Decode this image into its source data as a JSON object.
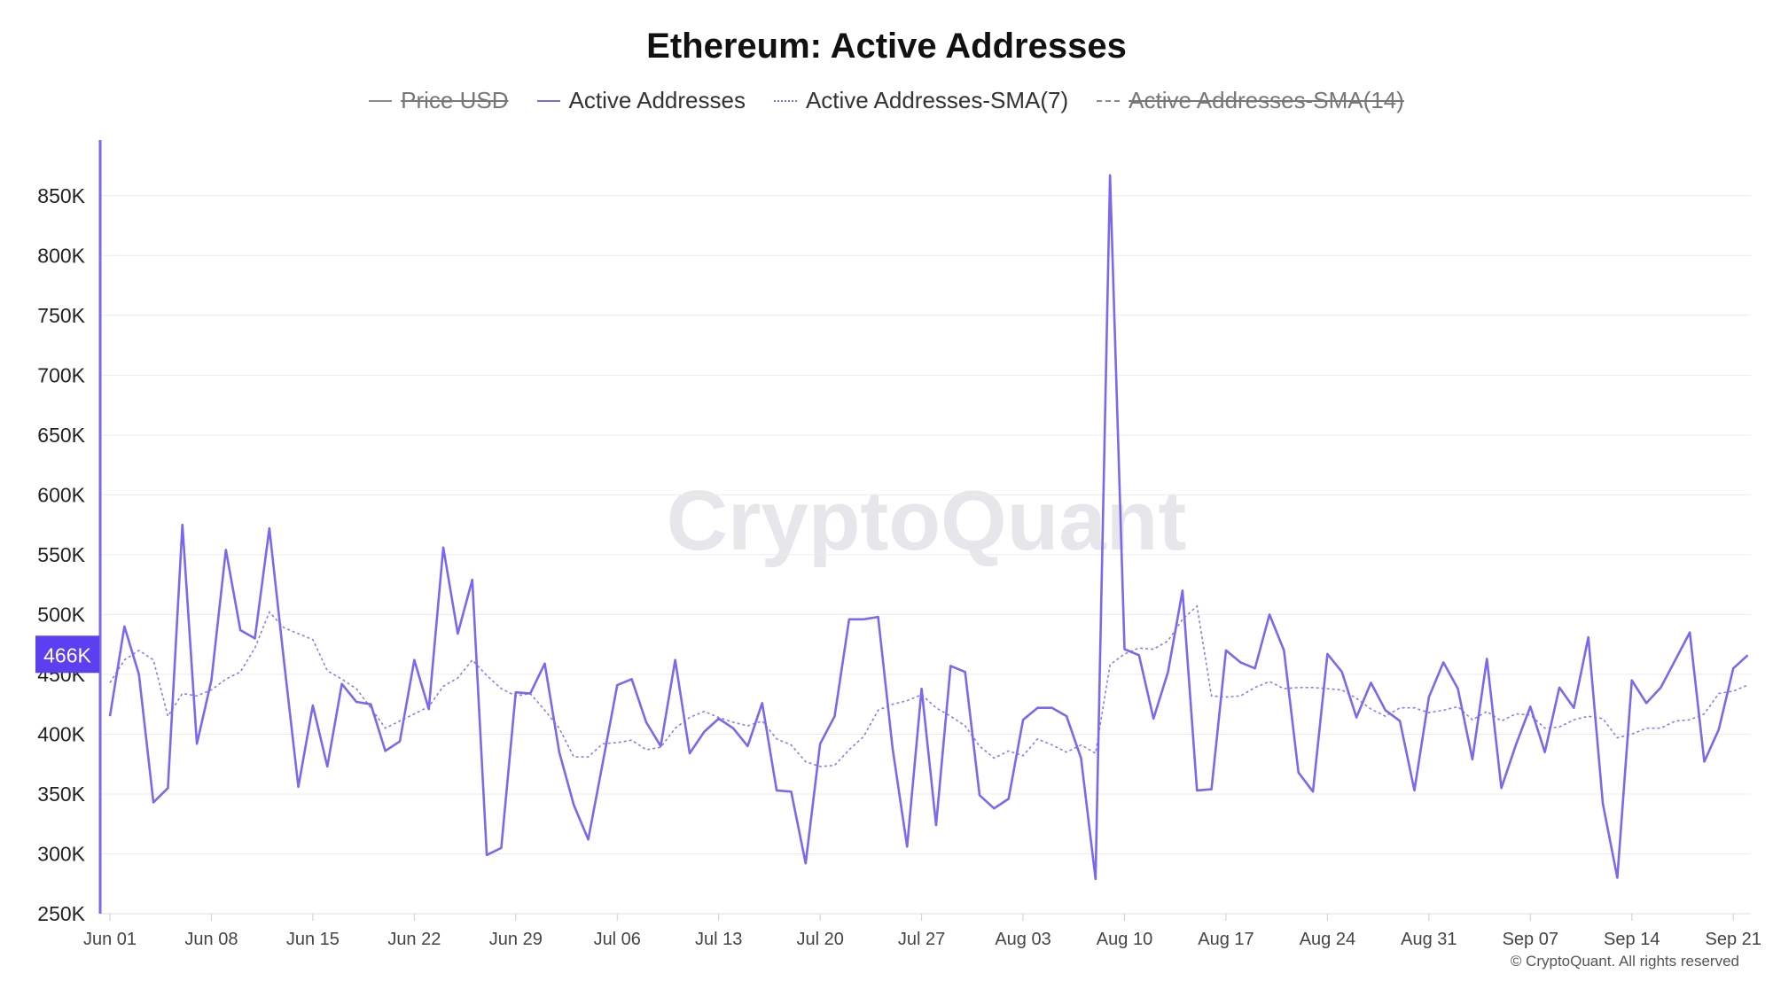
{
  "title": "Ethereum: Active Addresses",
  "legend": [
    {
      "label": "Price USD",
      "style": "solid",
      "hidden": true
    },
    {
      "label": "Active Addresses",
      "style": "solid",
      "hidden": false
    },
    {
      "label": "Active Addresses-SMA(7)",
      "style": "dotted",
      "hidden": false
    },
    {
      "label": "Active Addresses-SMA(14)",
      "style": "dashed",
      "hidden": true
    }
  ],
  "watermark": "CryptoQuant",
  "copyright": "© CryptoQuant. All rights reserved",
  "colors": {
    "line": "#7b68ee",
    "sma": "#8c7cf0",
    "axis": "#7b68ee",
    "badge": "#5b3ff0",
    "grid": "#ececec"
  },
  "chart_data": {
    "type": "line",
    "title": "Ethereum: Active Addresses",
    "y_ticks": [
      "250K",
      "300K",
      "350K",
      "400K",
      "450K",
      "500K",
      "550K",
      "600K",
      "650K",
      "700K",
      "750K",
      "800K",
      "850K"
    ],
    "y_tick_values": [
      250000,
      300000,
      350000,
      400000,
      450000,
      500000,
      550000,
      600000,
      650000,
      700000,
      750000,
      800000,
      850000
    ],
    "ylim": [
      250000,
      895000
    ],
    "x_tick_labels": [
      "Jun 01",
      "Jun 08",
      "Jun 15",
      "Jun 22",
      "Jun 29",
      "Jul 06",
      "Jul 13",
      "Jul 20",
      "Jul 27",
      "Aug 03",
      "Aug 10",
      "Aug 17",
      "Aug 24",
      "Aug 31",
      "Sep 07",
      "Sep 14",
      "Sep 21"
    ],
    "x_tick_days": [
      0,
      7,
      14,
      21,
      28,
      35,
      42,
      49,
      56,
      63,
      70,
      77,
      84,
      91,
      98,
      105,
      112
    ],
    "current_value_label": "466K",
    "grid": true,
    "legend_position": "top-center",
    "series": [
      {
        "name": "Active Addresses",
        "values": [
          415000,
          490000,
          450000,
          343000,
          355000,
          575000,
          392000,
          445000,
          554000,
          487000,
          480000,
          572000,
          462000,
          356000,
          424000,
          373000,
          442000,
          427000,
          425000,
          386000,
          394000,
          462000,
          421000,
          556000,
          484000,
          529000,
          299000,
          305000,
          435000,
          434000,
          459000,
          385000,
          341000,
          312000,
          376000,
          441000,
          446000,
          410000,
          390000,
          462000,
          384000,
          402000,
          413000,
          405000,
          390000,
          426000,
          353000,
          352000,
          292000,
          392000,
          415000,
          496000,
          496000,
          498000,
          388000,
          306000,
          438000,
          324000,
          457000,
          452000,
          349000,
          338000,
          346000,
          412000,
          422000,
          422000,
          415000,
          380000,
          279000,
          867000,
          471000,
          466000,
          413000,
          452000,
          520000,
          353000,
          354000,
          470000,
          460000,
          455000,
          500000,
          470000,
          368000,
          352000,
          467000,
          452000,
          414000,
          443000,
          420000,
          411000,
          353000,
          431000,
          460000,
          438000,
          379000,
          463000,
          355000,
          391000,
          423000,
          385000,
          439000,
          422000,
          481000,
          342000,
          280000,
          445000,
          426000,
          439000,
          462000,
          485000,
          377000,
          404000,
          455000,
          466000
        ]
      },
      {
        "name": "Active Addresses-SMA(7)",
        "values": [
          443000,
          462000,
          470000,
          462000,
          415000,
          434000,
          432000,
          437000,
          446000,
          452000,
          472000,
          502000,
          489000,
          484000,
          479000,
          453000,
          446000,
          438000,
          422000,
          405000,
          411000,
          417000,
          423000,
          440000,
          447000,
          462000,
          449000,
          438000,
          432000,
          434000,
          420000,
          405000,
          381000,
          381000,
          392000,
          393000,
          395000,
          387000,
          389000,
          405000,
          414000,
          419000,
          414000,
          410000,
          407000,
          411000,
          396000,
          391000,
          377000,
          373000,
          374000,
          387000,
          398000,
          420000,
          425000,
          428000,
          433000,
          422000,
          415000,
          407000,
          390000,
          380000,
          386000,
          382000,
          396000,
          391000,
          385000,
          391000,
          384000,
          458000,
          467000,
          472000,
          471000,
          478000,
          496000,
          507000,
          432000,
          431000,
          432000,
          439000,
          444000,
          438000,
          439000,
          439000,
          438000,
          437000,
          430000,
          421000,
          415000,
          422000,
          422000,
          418000,
          420000,
          423000,
          412000,
          419000,
          411000,
          417000,
          416000,
          405000,
          406000,
          412000,
          415000,
          413000,
          397000,
          400000,
          405000,
          405000,
          411000,
          412000,
          417000,
          434000,
          436000,
          441000
        ]
      }
    ]
  }
}
